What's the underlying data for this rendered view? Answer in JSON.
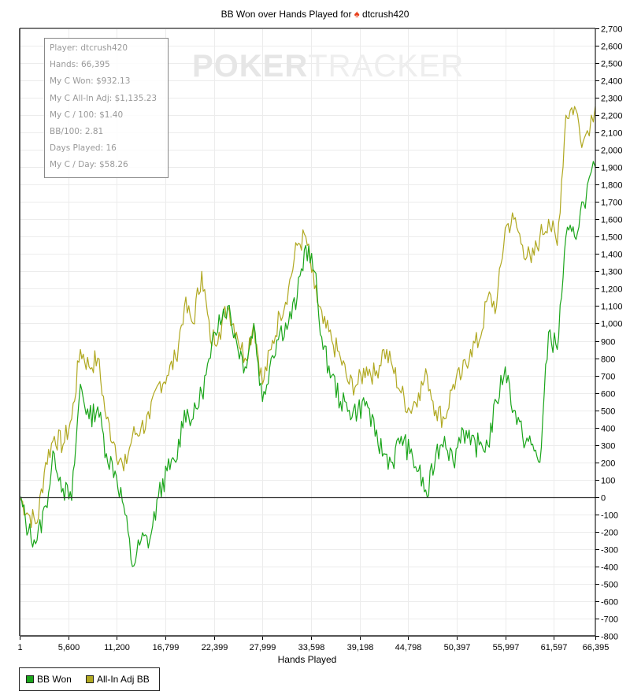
{
  "chart_data": {
    "type": "line",
    "title": "BB Won over Hands Played for dtcrush420",
    "title_prefix": "BB Won over Hands Played for",
    "title_icon": "spade-icon",
    "player": "dtcrush420",
    "xlabel": "Hands Played",
    "ylabel": "",
    "xlim": [
      1,
      66395
    ],
    "ylim": [
      -800,
      2700
    ],
    "x_ticks": [
      "1",
      "5,600",
      "11,200",
      "16,799",
      "22,399",
      "27,999",
      "33,598",
      "39,198",
      "44,798",
      "50,397",
      "55,997",
      "61,597",
      "66,395"
    ],
    "y_ticks": [
      "2,700",
      "2,600",
      "2,500",
      "2,400",
      "2,300",
      "2,200",
      "2,100",
      "2,000",
      "1,900",
      "1,800",
      "1,700",
      "1,600",
      "1,500",
      "1,400",
      "1,300",
      "1,200",
      "1,100",
      "1,000",
      "900",
      "800",
      "700",
      "600",
      "500",
      "400",
      "300",
      "200",
      "100",
      "0",
      "-100",
      "-200",
      "-300",
      "-400",
      "-500",
      "-600",
      "-700",
      "-800"
    ],
    "grid": true,
    "legend_position": "bottom-left",
    "x": [
      1,
      1000,
      2000,
      3000,
      4000,
      5000,
      6000,
      7000,
      8000,
      9000,
      10000,
      11000,
      12000,
      13000,
      14000,
      15000,
      16000,
      17000,
      18000,
      19000,
      20000,
      21000,
      22000,
      23000,
      24000,
      25000,
      26000,
      27000,
      28000,
      29000,
      30000,
      31000,
      32000,
      33000,
      34000,
      35000,
      36000,
      37000,
      38000,
      39000,
      40000,
      41000,
      42000,
      43000,
      44000,
      45000,
      46000,
      47000,
      48000,
      49000,
      50000,
      51000,
      52000,
      53000,
      54000,
      55000,
      56000,
      57000,
      58000,
      59000,
      60000,
      61000,
      62000,
      63000,
      64000,
      65000,
      66395
    ],
    "series": [
      {
        "name": "BB Won",
        "color": "#1aa51a",
        "values": [
          0,
          -200,
          -250,
          -50,
          250,
          50,
          -20,
          650,
          450,
          520,
          250,
          150,
          -50,
          -400,
          -250,
          -250,
          0,
          150,
          200,
          500,
          450,
          600,
          800,
          1050,
          1100,
          900,
          750,
          1000,
          550,
          800,
          950,
          1000,
          1150,
          1450,
          1300,
          850,
          700,
          550,
          500,
          500,
          550,
          350,
          250,
          200,
          350,
          250,
          150,
          0,
          250,
          350,
          200,
          400,
          300,
          300,
          300,
          550,
          750,
          500,
          350,
          300,
          200,
          950,
          850,
          1500,
          1500,
          1700,
          1900
        ]
      },
      {
        "name": "All-In Adj BB",
        "color": "#b0a820",
        "values": [
          0,
          -100,
          -150,
          200,
          350,
          300,
          450,
          850,
          750,
          800,
          450,
          300,
          150,
          350,
          400,
          450,
          650,
          700,
          800,
          1100,
          1000,
          1300,
          900,
          950,
          1100,
          950,
          800,
          1000,
          650,
          850,
          1050,
          1200,
          1450,
          1500,
          1200,
          1000,
          900,
          800,
          650,
          650,
          750,
          700,
          850,
          750,
          600,
          500,
          600,
          700,
          500,
          450,
          650,
          700,
          850,
          900,
          1150,
          1100,
          1550,
          1600,
          1450,
          1350,
          1500,
          1600,
          1450,
          2200,
          2250,
          2050,
          2250
        ]
      }
    ]
  },
  "stats_box": {
    "lines": [
      "Player: dtcrush420",
      "Hands: 66,395",
      "My C Won: $932.13",
      "My C All-In Adj: $1,135.23",
      "My C / 100: $1.40",
      "BB/100: 2.81",
      "Days Played: 16",
      "My C / Day: $58.26"
    ]
  },
  "watermark": {
    "bold": "POKER",
    "light": "TRACKER"
  },
  "legend": {
    "items": [
      {
        "label": "BB Won",
        "color": "#1aa51a"
      },
      {
        "label": "All-In Adj BB",
        "color": "#b0a820"
      }
    ]
  }
}
